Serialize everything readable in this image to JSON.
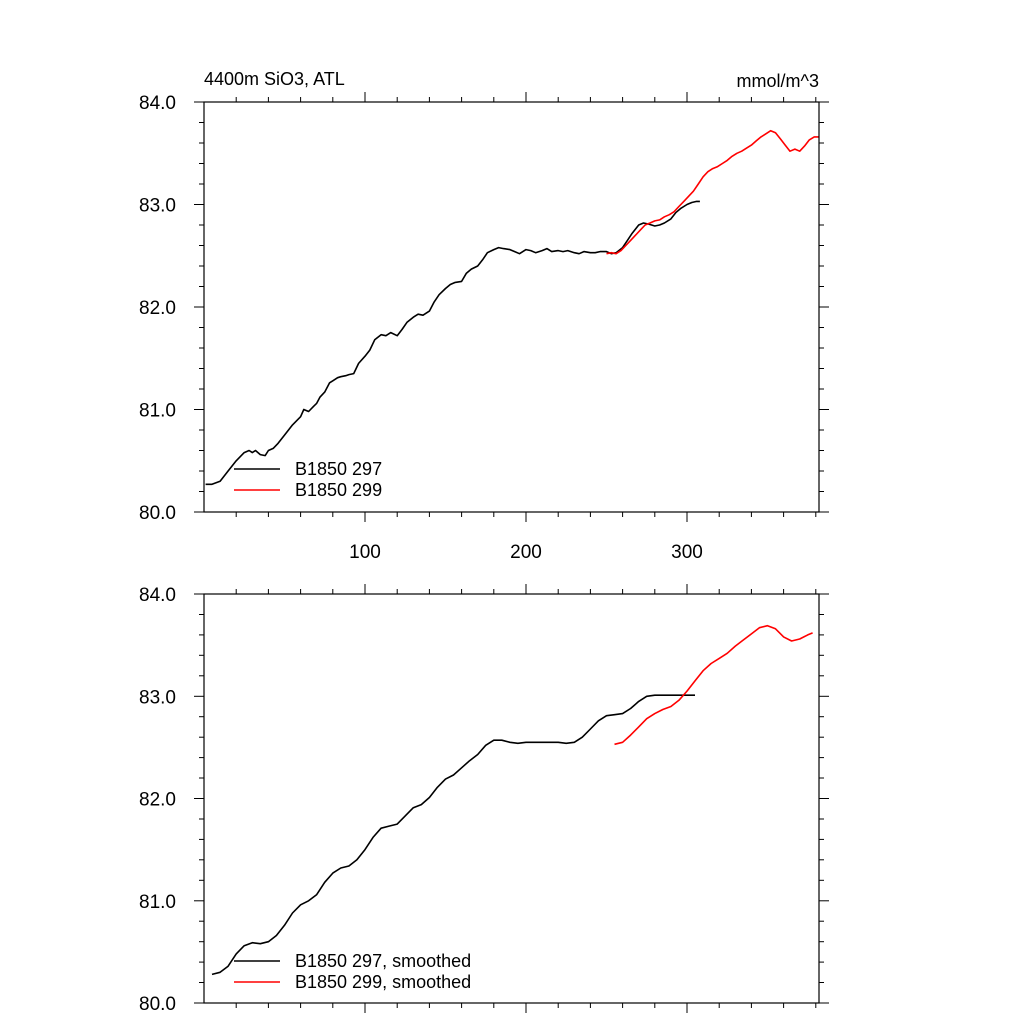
{
  "chart_data": [
    {
      "type": "line",
      "title_left": "4400m SiO3, ATL",
      "title_right": "mmol/m^3",
      "xlim": [
        0,
        382
      ],
      "ylim": [
        80.0,
        84.0
      ],
      "x_ticks": [
        100,
        200,
        300
      ],
      "x_tick_labels": [
        "100",
        "200",
        "300"
      ],
      "y_ticks": [
        80.0,
        81.0,
        82.0,
        83.0,
        84.0
      ],
      "y_tick_labels": [
        "80.0",
        "81.0",
        "82.0",
        "83.0",
        "84.0"
      ],
      "legend": {
        "position": "bottom-left"
      },
      "series": [
        {
          "name": "B1850 297",
          "color": "#000000",
          "x": [
            1,
            5,
            10,
            15,
            20,
            25,
            28,
            30,
            32,
            35,
            38,
            40,
            43,
            46,
            50,
            55,
            60,
            62,
            65,
            68,
            70,
            72,
            75,
            78,
            80,
            83,
            85,
            88,
            90,
            93,
            96,
            100,
            103,
            106,
            110,
            113,
            116,
            120,
            123,
            126,
            130,
            133,
            136,
            140,
            143,
            146,
            150,
            153,
            156,
            160,
            163,
            166,
            170,
            173,
            176,
            180,
            183,
            186,
            190,
            193,
            196,
            200,
            203,
            206,
            210,
            213,
            216,
            220,
            223,
            226,
            230,
            233,
            236,
            240,
            243,
            246,
            250,
            253,
            256,
            260,
            263,
            266,
            270,
            273,
            276,
            280,
            283,
            286,
            290,
            293,
            296,
            300,
            303,
            306,
            308
          ],
          "y": [
            80.27,
            80.27,
            80.3,
            80.4,
            80.5,
            80.58,
            80.6,
            80.58,
            80.6,
            80.56,
            80.55,
            80.6,
            80.62,
            80.67,
            80.75,
            80.85,
            80.93,
            81.0,
            80.98,
            81.03,
            81.06,
            81.12,
            81.17,
            81.26,
            81.28,
            81.31,
            81.32,
            81.33,
            81.34,
            81.35,
            81.45,
            81.52,
            81.58,
            81.68,
            81.73,
            81.72,
            81.75,
            81.72,
            81.78,
            81.85,
            81.9,
            81.93,
            81.92,
            81.96,
            82.05,
            82.12,
            82.18,
            82.22,
            82.24,
            82.25,
            82.33,
            82.37,
            82.4,
            82.46,
            82.53,
            82.56,
            82.58,
            82.57,
            82.56,
            82.54,
            82.52,
            82.56,
            82.55,
            82.53,
            82.55,
            82.57,
            82.54,
            82.55,
            82.54,
            82.55,
            82.53,
            82.52,
            82.54,
            82.53,
            82.53,
            82.54,
            82.54,
            82.52,
            82.53,
            82.58,
            82.65,
            82.72,
            82.8,
            82.82,
            82.81,
            82.79,
            82.8,
            82.82,
            82.86,
            82.92,
            82.96,
            83.0,
            83.02,
            83.03,
            83.03
          ]
        },
        {
          "name": "B1850 299",
          "color": "#ff0000",
          "x": [
            250,
            253,
            256,
            259,
            262,
            265,
            268,
            271,
            274,
            277,
            280,
            283,
            286,
            289,
            292,
            295,
            298,
            301,
            304,
            307,
            310,
            313,
            316,
            319,
            322,
            325,
            328,
            331,
            334,
            337,
            340,
            343,
            346,
            349,
            352,
            355,
            358,
            361,
            364,
            367,
            370,
            373,
            376,
            379,
            382
          ],
          "y": [
            82.52,
            82.53,
            82.52,
            82.55,
            82.6,
            82.65,
            82.7,
            82.75,
            82.8,
            82.82,
            82.84,
            82.85,
            82.88,
            82.9,
            82.93,
            82.98,
            83.03,
            83.08,
            83.13,
            83.2,
            83.27,
            83.32,
            83.35,
            83.37,
            83.4,
            83.43,
            83.47,
            83.5,
            83.52,
            83.55,
            83.58,
            83.62,
            83.66,
            83.69,
            83.72,
            83.7,
            83.64,
            83.58,
            83.52,
            83.54,
            83.52,
            83.57,
            83.63,
            83.66,
            83.66
          ]
        }
      ]
    },
    {
      "type": "line",
      "xlim": [
        0,
        382
      ],
      "ylim": [
        80.0,
        84.0
      ],
      "x_ticks": [
        100,
        200,
        300
      ],
      "y_ticks": [
        80.0,
        81.0,
        82.0,
        83.0,
        84.0
      ],
      "y_tick_labels": [
        "80.0",
        "81.0",
        "82.0",
        "83.0",
        "84.0"
      ],
      "legend": {
        "position": "bottom-left"
      },
      "series": [
        {
          "name": "B1850 297, smoothed",
          "color": "#000000",
          "x": [
            5,
            10,
            15,
            20,
            25,
            30,
            35,
            40,
            45,
            50,
            55,
            60,
            65,
            70,
            75,
            80,
            85,
            90,
            95,
            100,
            105,
            110,
            115,
            120,
            125,
            130,
            135,
            140,
            145,
            150,
            155,
            160,
            165,
            170,
            175,
            180,
            185,
            190,
            195,
            200,
            205,
            210,
            215,
            220,
            225,
            230,
            235,
            240,
            245,
            250,
            255,
            260,
            265,
            270,
            275,
            280,
            285,
            290,
            295,
            300,
            305
          ],
          "y": [
            80.28,
            80.3,
            80.36,
            80.48,
            80.56,
            80.59,
            80.58,
            80.6,
            80.66,
            80.76,
            80.88,
            80.96,
            81.0,
            81.06,
            81.18,
            81.27,
            81.32,
            81.34,
            81.4,
            81.5,
            81.62,
            81.71,
            81.73,
            81.75,
            81.83,
            81.91,
            81.94,
            82.01,
            82.11,
            82.19,
            82.23,
            82.3,
            82.37,
            82.43,
            82.52,
            82.57,
            82.57,
            82.55,
            82.54,
            82.55,
            82.55,
            82.55,
            82.55,
            82.55,
            82.54,
            82.55,
            82.6,
            82.68,
            82.76,
            82.81,
            82.82,
            82.83,
            82.88,
            82.95,
            83.0,
            83.01,
            83.01,
            83.01,
            83.01,
            83.01,
            83.01
          ]
        },
        {
          "name": "B1850 299, smoothed",
          "color": "#ff0000",
          "x": [
            255,
            260,
            265,
            270,
            275,
            280,
            285,
            290,
            295,
            300,
            305,
            310,
            315,
            320,
            325,
            330,
            335,
            340,
            345,
            350,
            355,
            360,
            365,
            370,
            375,
            378
          ],
          "y": [
            82.53,
            82.55,
            82.62,
            82.7,
            82.78,
            82.83,
            82.87,
            82.9,
            82.96,
            83.05,
            83.15,
            83.25,
            83.32,
            83.37,
            83.42,
            83.49,
            83.55,
            83.61,
            83.67,
            83.69,
            83.66,
            83.58,
            83.54,
            83.56,
            83.6,
            83.62
          ]
        }
      ]
    }
  ]
}
